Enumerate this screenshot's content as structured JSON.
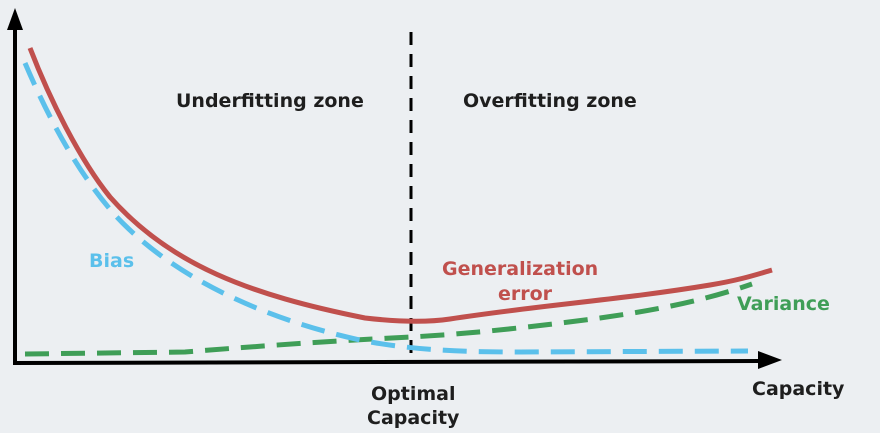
{
  "zones": {
    "left": "Underfitting zone",
    "right": "Overfitting zone"
  },
  "x_axis": {
    "label": "Capacity",
    "marker_line1": "Optimal",
    "marker_line2": "Capacity"
  },
  "series": {
    "bias": {
      "name": "Bias",
      "color": "#5bc0eb",
      "style": "dashed"
    },
    "generalization": {
      "name_line1": "Generalization",
      "name_line2": "error",
      "color": "#c0504d",
      "style": "solid"
    },
    "variance": {
      "name": "Variance",
      "color": "#3f9e57",
      "style": "dashed"
    }
  },
  "colors": {
    "axis": "#000000",
    "divider": "#000000",
    "background": "#eceff2"
  }
}
